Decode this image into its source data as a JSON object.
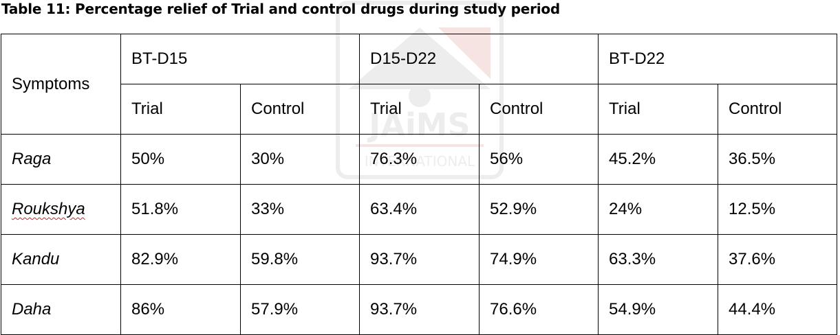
{
  "title": "Table 11: Percentage relief of Trial and control drugs during study period",
  "watermark": {
    "text": "JAiMS",
    "subtext": "INTERNATIONAL",
    "color": "#9a9a9a",
    "accent": "#c0392b"
  },
  "table": {
    "symptoms_header": "Symptoms",
    "groups": [
      "BT-D15",
      "D15-D22",
      "BT-D22"
    ],
    "sub_headers": [
      "Trial",
      "Control",
      "Trial",
      "Control",
      "Trial",
      "Control"
    ],
    "rows": [
      {
        "symptom": "Raga",
        "values": [
          "50%",
          "30%",
          "76.3%",
          "56%",
          "45.2%",
          "36.5%"
        ]
      },
      {
        "symptom": "Roukshya",
        "values": [
          "51.8%",
          "33%",
          "63.4%",
          "52.9%",
          "24%",
          "12.5%"
        ]
      },
      {
        "symptom": "Kandu",
        "values": [
          "82.9%",
          "59.8%",
          "93.7%",
          "74.9%",
          "63.3%",
          "37.6%"
        ]
      },
      {
        "symptom": "Daha",
        "values": [
          "86%",
          "57.9%",
          "93.7%",
          "76.6%",
          "54.9%",
          "44.4%"
        ]
      }
    ]
  }
}
